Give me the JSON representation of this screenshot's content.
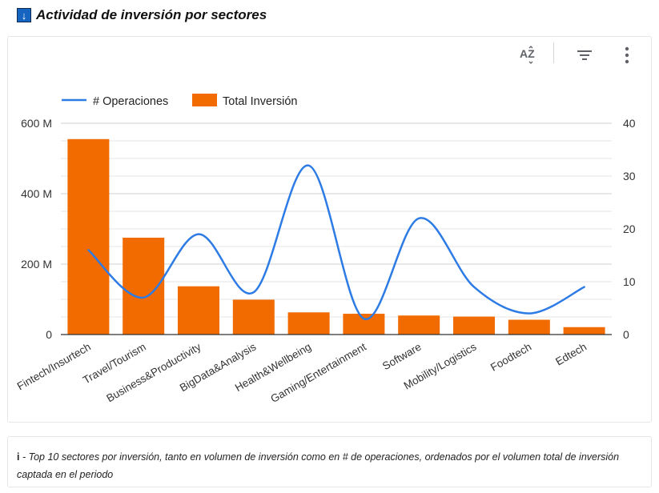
{
  "header": {
    "icon": "info-down-arrow-icon",
    "icon_glyph": "↓",
    "title": "Actividad de inversión por sectores"
  },
  "toolbar": {
    "sort_icon": "sort-az-icon",
    "sort_label": "AZ",
    "filter_icon": "filter-icon",
    "more_icon": "more-vertical-icon"
  },
  "chart_data": {
    "type": "bar",
    "categories": [
      "Fintech/Insurtech",
      "Travel/Tourism",
      "Business&Productivity",
      "BigData&Analysis",
      "Health&Wellbeing",
      "Gaming/Entertainment",
      "Software",
      "Mobility/Logistics",
      "Foodtech",
      "Edtech"
    ],
    "series": [
      {
        "name": "Total Inversión",
        "type": "bar",
        "axis": "left",
        "color": "#f26b00",
        "values": [
          555,
          275,
          137,
          99,
          63,
          59,
          54,
          51,
          42,
          21
        ]
      },
      {
        "name": "# Operaciones",
        "type": "line",
        "axis": "right",
        "color": "#2d7be5",
        "values": [
          16,
          7,
          19,
          8,
          32,
          3,
          22,
          9,
          4,
          9
        ]
      }
    ],
    "y_left": {
      "ticks": [
        0,
        200,
        400,
        600
      ],
      "tick_labels": [
        "0",
        "200 M",
        "400 M",
        "600 M"
      ],
      "range": [
        0,
        600
      ]
    },
    "y_right": {
      "ticks": [
        0,
        10,
        20,
        30,
        40
      ],
      "range": [
        0,
        40
      ]
    },
    "grid": true,
    "legend": "top-left"
  },
  "note": {
    "info_symbol": "i",
    "text": " - Top 10 sectores por inversión, tanto en volumen de inversión como en # de operaciones, ordenados por el volumen total de inversión captada en el periodo"
  }
}
